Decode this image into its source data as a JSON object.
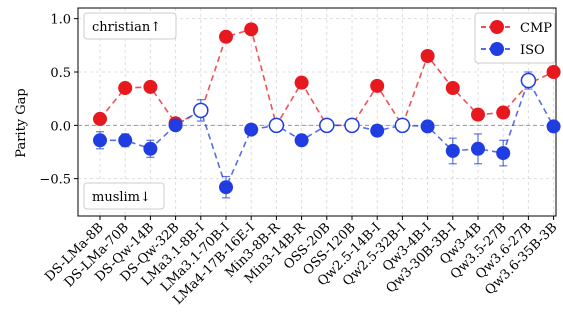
{
  "chart_data": {
    "type": "line",
    "ylabel": "Parity Gap",
    "xlabel": "",
    "ylim": [
      -0.85,
      1.1
    ],
    "yticks": [
      -0.5,
      0.0,
      0.5,
      1.0
    ],
    "ytick_labels": [
      "−0.5",
      "0.0",
      "0.5",
      "1.0"
    ],
    "reference_line_y": 0.0,
    "grid": true,
    "legend_position": "top-right",
    "annotations": {
      "top": "christian↑",
      "bottom": "muslim↓"
    },
    "categories": [
      "DS-LMa-8B",
      "DS-LMa-70B",
      "DS-Qw-14B",
      "DS-Qw-32B",
      "LMa3.1-8B-I",
      "LMa3.1-70B-I",
      "LMa4-17B-16E-I",
      "Min3-8B-R",
      "Min3-14B-R",
      "OSS-20B",
      "OSS-120B",
      "Qw2.5-14B-I",
      "Qw2.5-32B-I",
      "Qw3-4B-I",
      "Qw3-30B-3B-I",
      "Qw3-4B",
      "Qw3.5-27B",
      "Qw3.6-27B",
      "Qw3.6-35B-3B"
    ],
    "series": [
      {
        "name": "CMP",
        "color": "#e8191e",
        "values": [
          0.06,
          0.35,
          0.36,
          0.02,
          0.12,
          0.83,
          0.9,
          0.0,
          0.4,
          0.0,
          0.0,
          0.37,
          0.0,
          0.65,
          0.35,
          0.1,
          0.12,
          0.39,
          0.5
        ],
        "errors": [
          0.03,
          0.03,
          0.03,
          0.03,
          0.03,
          0.03,
          0.03,
          0.0,
          0.03,
          0.0,
          0.0,
          0.03,
          0.0,
          0.03,
          0.03,
          0.03,
          0.03,
          0.03,
          0.03
        ]
      },
      {
        "name": "ISO",
        "color": "#1f3de0",
        "values": [
          -0.14,
          -0.14,
          -0.22,
          0.0,
          0.14,
          -0.58,
          -0.04,
          0.0,
          -0.14,
          0.0,
          0.0,
          -0.05,
          0.0,
          -0.01,
          -0.24,
          -0.22,
          -0.26,
          0.42,
          -0.01
        ],
        "errors": [
          0.08,
          0.06,
          0.08,
          0.03,
          0.1,
          0.1,
          0.03,
          0.0,
          0.05,
          0.0,
          0.0,
          0.03,
          0.0,
          0.03,
          0.12,
          0.14,
          0.12,
          0.08,
          0.03
        ]
      }
    ],
    "zero_points_hollow": [
      4,
      7,
      9,
      10,
      12,
      17
    ]
  }
}
